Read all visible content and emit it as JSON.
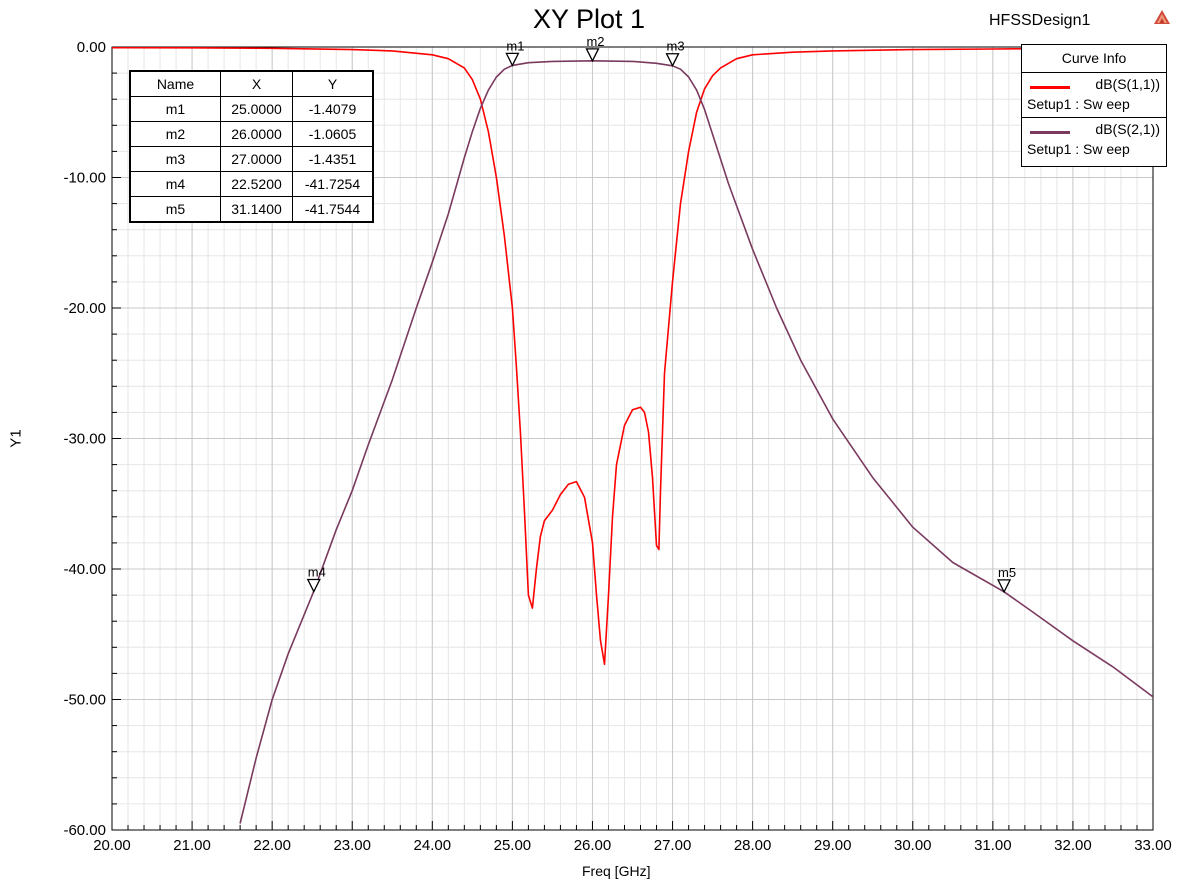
{
  "header": {
    "title": "XY Plot 1",
    "design_name": "HFSSDesign1",
    "logo_icon": "ansoft-triangle-icon"
  },
  "marker_table": {
    "headers": [
      "Name",
      "X",
      "Y"
    ],
    "rows": [
      {
        "name": "m1",
        "x": "25.0000",
        "y": "-1.4079"
      },
      {
        "name": "m2",
        "x": "26.0000",
        "y": "-1.0605"
      },
      {
        "name": "m3",
        "x": "27.0000",
        "y": "-1.4351"
      },
      {
        "name": "m4",
        "x": "22.5200",
        "y": "-41.7254"
      },
      {
        "name": "m5",
        "x": "31.1400",
        "y": "-41.7544"
      }
    ]
  },
  "legend": {
    "title": "Curve Info",
    "entries": [
      {
        "name": "dB(S(1,1))",
        "setup": "Setup1 : Sw eep",
        "color": "#ff0000"
      },
      {
        "name": "dB(S(2,1))",
        "setup": "Setup1 : Sw eep",
        "color": "#7a3a5e"
      }
    ]
  },
  "chart_data": {
    "type": "line",
    "title": "XY Plot 1",
    "xlabel": "Freq [GHz]",
    "ylabel": "Y1",
    "xlim": [
      20,
      33
    ],
    "ylim": [
      -60,
      0
    ],
    "x_ticks": [
      "20.00",
      "21.00",
      "22.00",
      "23.00",
      "24.00",
      "25.00",
      "26.00",
      "27.00",
      "28.00",
      "29.00",
      "30.00",
      "31.00",
      "32.00",
      "33.00"
    ],
    "y_ticks": [
      "0.00",
      "-10.00",
      "-20.00",
      "-30.00",
      "-40.00",
      "-50.00",
      "-60.00"
    ],
    "grid": true,
    "legend_position": "top-right",
    "series": [
      {
        "name": "dB(S(1,1))",
        "color": "#ff0000",
        "x": [
          20.0,
          21.0,
          22.0,
          23.0,
          23.5,
          24.0,
          24.2,
          24.4,
          24.5,
          24.6,
          24.7,
          24.8,
          24.9,
          25.0,
          25.05,
          25.1,
          25.15,
          25.2,
          25.25,
          25.3,
          25.35,
          25.4,
          25.5,
          25.6,
          25.7,
          25.8,
          25.9,
          26.0,
          26.05,
          26.1,
          26.15,
          26.2,
          26.25,
          26.3,
          26.4,
          26.5,
          26.6,
          26.65,
          26.7,
          26.75,
          26.8,
          26.83,
          26.85,
          26.9,
          27.0,
          27.1,
          27.2,
          27.3,
          27.4,
          27.5,
          27.6,
          27.8,
          28.0,
          28.5,
          29.0,
          30.0,
          31.0,
          32.0,
          33.0
        ],
        "y": [
          -0.05,
          -0.06,
          -0.1,
          -0.2,
          -0.3,
          -0.6,
          -0.9,
          -1.6,
          -2.5,
          -4.0,
          -6.5,
          -10.0,
          -14.5,
          -20.0,
          -24.5,
          -29.5,
          -35.5,
          -42.0,
          -43.0,
          -40.0,
          -37.5,
          -36.3,
          -35.5,
          -34.3,
          -33.5,
          -33.3,
          -34.5,
          -38.0,
          -42.0,
          -45.5,
          -47.3,
          -42.0,
          -36.0,
          -32.0,
          -29.0,
          -27.8,
          -27.6,
          -28.0,
          -29.5,
          -33.0,
          -38.2,
          -38.5,
          -34.0,
          -25.0,
          -18.0,
          -12.0,
          -8.0,
          -5.0,
          -3.2,
          -2.2,
          -1.6,
          -0.9,
          -0.6,
          -0.4,
          -0.3,
          -0.2,
          -0.15,
          -0.1,
          -0.1
        ]
      },
      {
        "name": "dB(S(2,1))",
        "color": "#7a3a5e",
        "x": [
          21.6,
          21.8,
          22.0,
          22.2,
          22.52,
          22.8,
          23.0,
          23.2,
          23.5,
          23.8,
          24.0,
          24.2,
          24.4,
          24.5,
          24.6,
          24.7,
          24.8,
          24.9,
          25.0,
          25.2,
          25.5,
          26.0,
          26.5,
          26.8,
          27.0,
          27.1,
          27.2,
          27.3,
          27.4,
          27.5,
          27.7,
          28.0,
          28.3,
          28.6,
          29.0,
          29.5,
          30.0,
          30.5,
          31.14,
          31.5,
          32.0,
          32.5,
          33.0
        ],
        "y": [
          -59.5,
          -54.5,
          -50.0,
          -46.5,
          -41.7,
          -37.0,
          -34.0,
          -30.5,
          -25.5,
          -20.0,
          -16.5,
          -12.8,
          -8.5,
          -6.5,
          -4.7,
          -3.3,
          -2.3,
          -1.7,
          -1.41,
          -1.2,
          -1.1,
          -1.06,
          -1.1,
          -1.25,
          -1.44,
          -1.7,
          -2.3,
          -3.3,
          -4.8,
          -6.7,
          -10.5,
          -15.5,
          -20.0,
          -24.0,
          -28.5,
          -33.0,
          -36.8,
          -39.5,
          -41.75,
          -43.3,
          -45.5,
          -47.5,
          -49.8
        ]
      }
    ],
    "markers": [
      {
        "name": "m1",
        "x": 25.0,
        "y": -1.4079,
        "series": 1
      },
      {
        "name": "m2",
        "x": 26.0,
        "y": -1.0605,
        "series": 1
      },
      {
        "name": "m3",
        "x": 27.0,
        "y": -1.4351,
        "series": 1
      },
      {
        "name": "m4",
        "x": 22.52,
        "y": -41.7254,
        "series": 1
      },
      {
        "name": "m5",
        "x": 31.14,
        "y": -41.7544,
        "series": 1
      }
    ]
  }
}
